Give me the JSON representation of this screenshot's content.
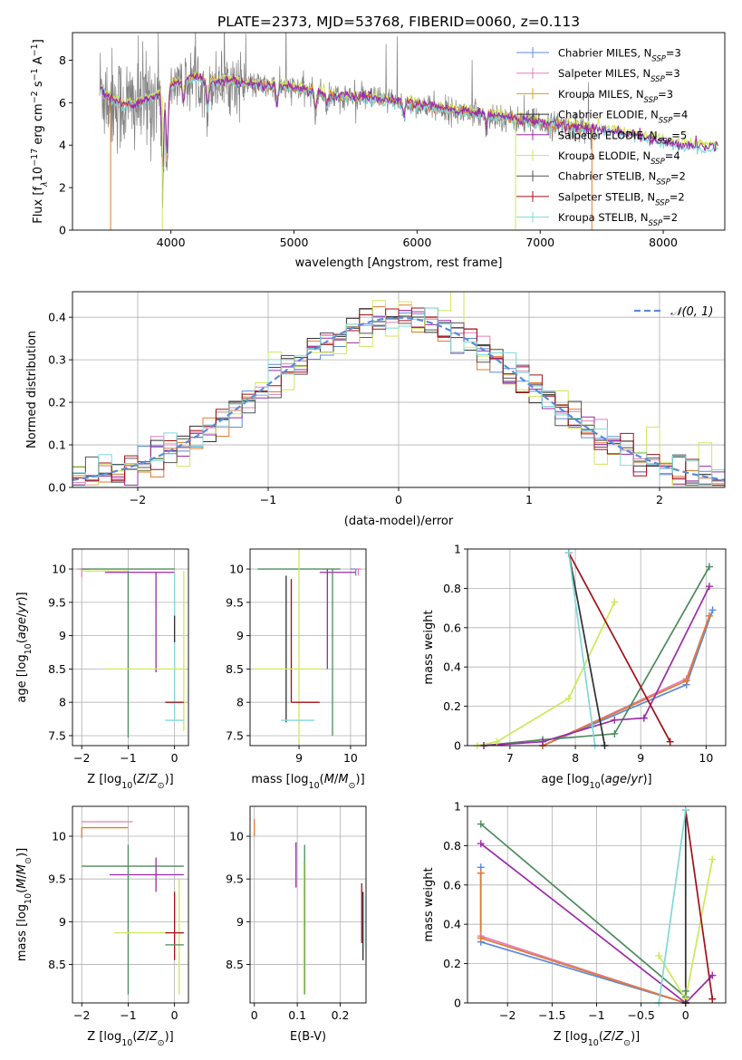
{
  "figure": {
    "title": "PLATE=2373, MJD=53768, FIBERID=0060, z=0.113"
  },
  "palette": {
    "Chabrier MILES": "#5b8bd8",
    "Salpeter MILES": "#e080b8",
    "Kroupa MILES": "#d4a020",
    "Chabrier ELODIE": "#303030",
    "Salpeter ELODIE": "#9b2aa8",
    "Kroupa ELODIE": "#cde85a",
    "Chabrier STELIB": "#555555",
    "Salpeter STELIB": "#a01018",
    "Kroupa STELIB": "#80d8d8",
    "orange": "#e07b30",
    "green": "#4e8a5e",
    "gray": "#808080"
  },
  "chart_data": [
    {
      "id": "spectrum",
      "type": "line",
      "xlabel": "wavelength [Angstrom, rest frame]",
      "ylabel": "Flux [f",
      "xlim": [
        3200,
        8500
      ],
      "ylim": [
        0,
        9.3
      ],
      "xticks": [
        4000,
        5000,
        6000,
        7000,
        8000
      ],
      "yticks": [
        0,
        2,
        4,
        6,
        8
      ],
      "legend_position": "upper right",
      "legend": [
        {
          "label": "Chabrier MILES, N",
          "sub": "SSP",
          "tail": "=3",
          "color": "#5b8bd8"
        },
        {
          "label": "Salpeter MILES, N",
          "sub": "SSP",
          "tail": "=3",
          "color": "#e080b8"
        },
        {
          "label": "Kroupa MILES, N",
          "sub": "SSP",
          "tail": "=3",
          "color": "#d4a020"
        },
        {
          "label": "Chabrier ELODIE, N",
          "sub": "SSP",
          "tail": "=4",
          "color": "#303030"
        },
        {
          "label": "Salpeter ELODIE, N",
          "sub": "SSP",
          "tail": "=5",
          "color": "#9b2aa8"
        },
        {
          "label": "Kroupa ELODIE, N",
          "sub": "SSP",
          "tail": "=4",
          "color": "#cde85a"
        },
        {
          "label": "Chabrier STELIB, N",
          "sub": "SSP",
          "tail": "=2",
          "color": "#555555"
        },
        {
          "label": "Salpeter STELIB, N",
          "sub": "SSP",
          "tail": "=2",
          "color": "#a01018"
        },
        {
          "label": "Kroupa STELIB, N",
          "sub": "SSP",
          "tail": "=2",
          "color": "#80d8d8"
        }
      ],
      "continuum": {
        "x": [
          3420,
          3500,
          3600,
          3700,
          3800,
          3900,
          4000,
          4100,
          4200,
          4300,
          4400,
          4500,
          4700,
          5000,
          5300,
          5600,
          6000,
          6300,
          6600,
          6900,
          7200,
          7500,
          7800,
          8100,
          8400
        ],
        "y": [
          6.7,
          6.2,
          5.9,
          5.9,
          6.1,
          6.3,
          6.8,
          7.0,
          7.2,
          6.9,
          7.0,
          7.0,
          6.8,
          6.7,
          6.3,
          6.2,
          5.9,
          5.6,
          5.4,
          5.1,
          4.9,
          4.7,
          4.4,
          4.0,
          3.9
        ]
      },
      "absorption_lines": [
        {
          "x": 3934,
          "depth": 4.6
        },
        {
          "x": 3969,
          "depth": 4.0
        },
        {
          "x": 4102,
          "depth": 1.2
        },
        {
          "x": 4300,
          "depth": 1.5
        },
        {
          "x": 4861,
          "depth": 0.8
        },
        {
          "x": 5175,
          "depth": 1.0
        },
        {
          "x": 5270,
          "depth": 0.6
        },
        {
          "x": 5892,
          "depth": 0.8
        },
        {
          "x": 6563,
          "depth": 0.6
        }
      ]
    },
    {
      "id": "residuals",
      "type": "step",
      "xlabel": "(data-model)/error",
      "ylabel": "Normed distribution",
      "xlim": [
        -2.5,
        2.5
      ],
      "ylim": [
        0,
        0.46
      ],
      "xticks": [
        -2,
        -1,
        0,
        1,
        2
      ],
      "yticks": [
        0.0,
        0.1,
        0.2,
        0.3,
        0.4
      ],
      "legend_position": "upper right",
      "legend": [
        {
          "label": "𝒩(0, 1)",
          "color": "#5b8bd8",
          "dashed": true
        }
      ],
      "bin_width": 0.1,
      "bin_start": -2.5
    },
    {
      "id": "age_vs_Z",
      "type": "errorbar",
      "xlabel": "Z [log",
      "ylabel": "age  [log",
      "xlim": [
        -2.2,
        0.3
      ],
      "ylim": [
        7.35,
        10.3
      ],
      "xticks": [
        -2,
        -1,
        0
      ],
      "yticks": [
        7.5,
        8.0,
        8.5,
        9.0,
        9.5,
        10.0
      ],
      "points": [
        {
          "x": -2.0,
          "y": 10.0,
          "xerr": [
            0.1,
            0.15
          ],
          "yerr": [
            0.12,
            0.0
          ],
          "color": "#e080b8"
        },
        {
          "x": -1.5,
          "y": 10.0,
          "xerr": [
            0.5,
            1.5
          ],
          "yerr": [
            0.0,
            0.0
          ],
          "color": "#4e8a5e"
        },
        {
          "x": -1.5,
          "y": 9.97,
          "xerr": [
            0.5,
            0.5
          ],
          "yerr": [
            0.0,
            0.0
          ],
          "color": "#cde85a"
        },
        {
          "x": -0.9,
          "y": 9.95,
          "xerr": [
            0.6,
            0.9
          ],
          "yerr": [
            0.0,
            0.0
          ],
          "color": "#9b2aa8"
        },
        {
          "x": -1.0,
          "y": 9.97,
          "xerr": [
            0.0,
            0.0
          ],
          "yerr": [
            2.5,
            0.0
          ],
          "color": "#4e8a5e"
        },
        {
          "x": -0.4,
          "y": 9.95,
          "xerr": [
            0.0,
            0.0
          ],
          "yerr": [
            1.5,
            0.0
          ],
          "color": "#9b2aa8"
        },
        {
          "x": 0.0,
          "y": 9.95,
          "xerr": [
            0.0,
            0.0
          ],
          "yerr": [
            2.2,
            0.0
          ],
          "color": "#80d8d8"
        },
        {
          "x": 0.2,
          "y": 9.97,
          "xerr": [
            0.0,
            0.0
          ],
          "yerr": [
            2.4,
            0.0
          ],
          "color": "#cde85a"
        },
        {
          "x": -0.5,
          "y": 8.5,
          "xerr": [
            1.0,
            0.7
          ],
          "yerr": [
            0.0,
            0.0
          ],
          "color": "#cde85a"
        },
        {
          "x": 0.0,
          "y": 8.0,
          "xerr": [
            0.2,
            0.2
          ],
          "yerr": [
            0.0,
            0.0
          ],
          "color": "#a01018"
        },
        {
          "x": 0.0,
          "y": 7.73,
          "xerr": [
            0.2,
            0.2
          ],
          "yerr": [
            0.0,
            0.0
          ],
          "color": "#80d8d8"
        },
        {
          "x": 0.0,
          "y": 9.3,
          "xerr": [
            0.0,
            0.0
          ],
          "yerr": [
            0.4,
            0.0
          ],
          "color": "#303030"
        }
      ]
    },
    {
      "id": "age_vs_mass",
      "type": "errorbar",
      "xlabel": "mass [log",
      "ylabel": "",
      "xlim": [
        8.05,
        10.3
      ],
      "ylim": [
        7.35,
        10.3
      ],
      "xticks": [
        9,
        10
      ],
      "yticks": [
        7.5,
        8.0,
        8.5,
        9.0,
        9.5,
        10.0
      ],
      "points": [
        {
          "x": 9.2,
          "y": 10.0,
          "xerr": [
            1.0,
            0.6
          ],
          "yerr": [
            0.0,
            0.0
          ],
          "color": "#4e8a5e"
        },
        {
          "x": 10.1,
          "y": 10.0,
          "xerr": [
            0.1,
            0.05
          ],
          "yerr": [
            0.1,
            0.0
          ],
          "color": "#5b8bd8"
        },
        {
          "x": 10.15,
          "y": 10.0,
          "xerr": [
            0.08,
            0.05
          ],
          "yerr": [
            0.1,
            0.0
          ],
          "color": "#e080b8"
        },
        {
          "x": 9.7,
          "y": 9.95,
          "xerr": [
            0.3,
            0.4
          ],
          "yerr": [
            0.0,
            0.0
          ],
          "color": "#9b2aa8"
        },
        {
          "x": 9.0,
          "y": 10.3,
          "xerr": [
            0.0,
            0.0
          ],
          "yerr": [
            2.9,
            0.0
          ],
          "color": "#cde85a"
        },
        {
          "x": 8.75,
          "y": 9.9,
          "xerr": [
            0.0,
            0.0
          ],
          "yerr": [
            2.2,
            0.0
          ],
          "color": "#303030"
        },
        {
          "x": 9.65,
          "y": 10.0,
          "xerr": [
            0.0,
            0.0
          ],
          "yerr": [
            2.5,
            0.0
          ],
          "color": "#4e8a5e"
        },
        {
          "x": 9.55,
          "y": 10.0,
          "xerr": [
            0.0,
            0.0
          ],
          "yerr": [
            1.5,
            0.0
          ],
          "color": "#9b2aa8"
        },
        {
          "x": 8.85,
          "y": 9.85,
          "xerr": [
            0.0,
            0.0
          ],
          "yerr": [
            1.85,
            0.0
          ],
          "color": "#a01018"
        },
        {
          "x": 8.9,
          "y": 8.5,
          "xerr": [
            0.8,
            0.55
          ],
          "yerr": [
            0.0,
            0.0
          ],
          "color": "#cde85a"
        },
        {
          "x": 9.05,
          "y": 8.0,
          "xerr": [
            0.2,
            0.35
          ],
          "yerr": [
            0.0,
            0.0
          ],
          "color": "#a01018"
        },
        {
          "x": 8.9,
          "y": 7.73,
          "xerr": [
            0.25,
            0.4
          ],
          "yerr": [
            0.0,
            0.0
          ],
          "color": "#80d8d8"
        }
      ]
    },
    {
      "id": "mass_weight_vs_age",
      "type": "line",
      "xlabel": "age  [log",
      "ylabel": "mass weight",
      "xlim": [
        6.35,
        10.3
      ],
      "ylim": [
        0.0,
        1.0
      ],
      "xticks": [
        7,
        8,
        9,
        10
      ],
      "yticks": [
        0.0,
        0.2,
        0.4,
        0.6,
        0.8,
        1.0
      ],
      "series": [
        {
          "color": "#5b8bd8",
          "x": [
            7.5,
            9.7,
            10.1
          ],
          "y": [
            0.0,
            0.31,
            0.69
          ]
        },
        {
          "color": "#e080b8",
          "x": [
            7.5,
            9.7,
            10.05
          ],
          "y": [
            0.0,
            0.34,
            0.66
          ]
        },
        {
          "color": "#e07b30",
          "x": [
            7.5,
            9.7,
            10.05
          ],
          "y": [
            0.0,
            0.33,
            0.66
          ]
        },
        {
          "color": "#4e8a5e",
          "x": [
            6.6,
            7.5,
            8.6,
            10.05
          ],
          "y": [
            0.0,
            0.03,
            0.06,
            0.91
          ]
        },
        {
          "color": "#9b2aa8",
          "x": [
            6.6,
            7.5,
            8.6,
            9.05,
            10.05
          ],
          "y": [
            0.0,
            0.02,
            0.13,
            0.14,
            0.81
          ]
        },
        {
          "color": "#cde85a",
          "x": [
            6.5,
            6.8,
            7.9,
            8.6
          ],
          "y": [
            0.0,
            0.02,
            0.24,
            0.73
          ]
        },
        {
          "color": "#303030",
          "x": [
            7.9,
            8.45
          ],
          "y": [
            0.98,
            0.0
          ]
        },
        {
          "color": "#a01018",
          "x": [
            7.9,
            9.45
          ],
          "y": [
            0.98,
            0.02
          ]
        },
        {
          "color": "#80d8d8",
          "x": [
            7.9,
            8.3
          ],
          "y": [
            0.98,
            0.0
          ]
        }
      ]
    },
    {
      "id": "mass_vs_Z",
      "type": "errorbar",
      "xlabel": "Z [log",
      "ylabel": "mass [log",
      "xlim": [
        -2.2,
        0.3
      ],
      "ylim": [
        8.05,
        10.35
      ],
      "xticks": [
        -2,
        -1,
        0
      ],
      "yticks": [
        8.5,
        9.0,
        9.5,
        10.0
      ],
      "points": [
        {
          "x": -2.0,
          "y": 10.17,
          "xerr": [
            0.0,
            1.1
          ],
          "yerr": [
            0.0,
            0.0
          ],
          "color": "#e080b8"
        },
        {
          "x": -2.0,
          "y": 10.1,
          "xerr": [
            0.0,
            1.0
          ],
          "yerr": [
            0.12,
            0.0
          ],
          "color": "#e07b30"
        },
        {
          "x": -1.5,
          "y": 9.65,
          "xerr": [
            0.5,
            1.7
          ],
          "yerr": [
            0.0,
            0.0
          ],
          "color": "#4e8a5e"
        },
        {
          "x": -1.0,
          "y": 9.55,
          "xerr": [
            0.4,
            1.2
          ],
          "yerr": [
            0.0,
            0.0
          ],
          "color": "#9b2aa8"
        },
        {
          "x": -1.0,
          "y": 9.9,
          "xerr": [
            0.0,
            0.0
          ],
          "yerr": [
            1.75,
            0.0
          ],
          "color": "#4e8a5e"
        },
        {
          "x": -0.4,
          "y": 9.75,
          "xerr": [
            0.0,
            0.0
          ],
          "yerr": [
            0.4,
            0.0
          ],
          "color": "#9b2aa8"
        },
        {
          "x": 0.0,
          "y": 9.35,
          "xerr": [
            0.0,
            0.0
          ],
          "yerr": [
            0.8,
            0.0
          ],
          "color": "#a01018"
        },
        {
          "x": 0.1,
          "y": 9.5,
          "xerr": [
            0.0,
            0.0
          ],
          "yerr": [
            1.35,
            0.0
          ],
          "color": "#cde85a"
        },
        {
          "x": -0.5,
          "y": 8.87,
          "xerr": [
            0.8,
            0.7
          ],
          "yerr": [
            0.0,
            0.0
          ],
          "color": "#cde85a"
        },
        {
          "x": 0.0,
          "y": 8.87,
          "xerr": [
            0.2,
            0.2
          ],
          "yerr": [
            0.0,
            0.0
          ],
          "color": "#a01018"
        },
        {
          "x": 0.0,
          "y": 8.73,
          "xerr": [
            0.2,
            0.2
          ],
          "yerr": [
            0.0,
            0.0
          ],
          "color": "#4e8a5e"
        }
      ]
    },
    {
      "id": "mass_vs_EBV",
      "type": "errorbar",
      "xlabel": "E(B-V)",
      "ylabel": "",
      "xlim": [
        -0.01,
        0.26
      ],
      "ylim": [
        8.05,
        10.35
      ],
      "xticks": [
        0.0,
        0.1,
        0.2
      ],
      "yticks": [
        8.5,
        9.0,
        9.5,
        10.0
      ],
      "points": [
        {
          "x": 0.0,
          "y": 10.1,
          "xerr": [
            0.0,
            0.0
          ],
          "yerr": [
            0.1,
            0.1
          ],
          "color": "#e07b30"
        },
        {
          "x": 0.097,
          "y": 9.65,
          "xerr": [
            0.0,
            0.0
          ],
          "yerr": [
            0.25,
            0.28
          ],
          "color": "#9b2aa8"
        },
        {
          "x": 0.117,
          "y": 9.0,
          "xerr": [
            0.0,
            0.0
          ],
          "yerr": [
            0.85,
            0.9
          ],
          "color": "#4e8a5e"
        },
        {
          "x": 0.115,
          "y": 8.9,
          "xerr": [
            0.0,
            0.0
          ],
          "yerr": [
            0.75,
            0.8
          ],
          "color": "#cde85a"
        },
        {
          "x": 0.25,
          "y": 9.1,
          "xerr": [
            0.0,
            0.0
          ],
          "yerr": [
            0.35,
            0.35
          ],
          "color": "#a01018"
        },
        {
          "x": 0.253,
          "y": 8.95,
          "xerr": [
            0.0,
            0.0
          ],
          "yerr": [
            0.4,
            0.4
          ],
          "color": "#303030"
        },
        {
          "x": 0.255,
          "y": 9.0,
          "xerr": [
            0.0,
            0.0
          ],
          "yerr": [
            0.3,
            0.3
          ],
          "color": "#80d8d8"
        }
      ]
    },
    {
      "id": "mass_weight_vs_Z",
      "type": "line",
      "xlabel": "Z [log",
      "ylabel": "mass weight",
      "xlim": [
        -2.45,
        0.45
      ],
      "ylim": [
        0.0,
        1.0
      ],
      "xticks": [
        -2.0,
        -1.5,
        -1.0,
        -0.5,
        0.0
      ],
      "yticks": [
        0.0,
        0.2,
        0.4,
        0.6,
        0.8,
        1.0
      ],
      "series": [
        {
          "color": "#5b8bd8",
          "x": [
            -2.3,
            -2.3,
            0.0
          ],
          "y": [
            0.69,
            0.31,
            0.0
          ]
        },
        {
          "color": "#e080b8",
          "x": [
            -2.3,
            -2.3,
            0.0
          ],
          "y": [
            0.66,
            0.34,
            0.0
          ]
        },
        {
          "color": "#e07b30",
          "x": [
            -2.3,
            -2.3,
            0.0
          ],
          "y": [
            0.66,
            0.33,
            0.0
          ]
        },
        {
          "color": "#4e8a5e",
          "x": [
            -2.3,
            0.0,
            0.0
          ],
          "y": [
            0.91,
            0.03,
            0.06
          ]
        },
        {
          "color": "#9b2aa8",
          "x": [
            -2.3,
            0.0,
            0.3
          ],
          "y": [
            0.81,
            0.0,
            0.14
          ]
        },
        {
          "color": "#cde85a",
          "x": [
            -0.3,
            0.0,
            0.3
          ],
          "y": [
            0.24,
            0.02,
            0.73
          ]
        },
        {
          "color": "#303030",
          "x": [
            0.0,
            0.0
          ],
          "y": [
            0.98,
            0.0
          ]
        },
        {
          "color": "#a01018",
          "x": [
            0.0,
            0.3
          ],
          "y": [
            0.98,
            0.02
          ]
        },
        {
          "color": "#80d8d8",
          "x": [
            0.0,
            -0.3
          ],
          "y": [
            0.98,
            0.0
          ]
        }
      ]
    }
  ]
}
